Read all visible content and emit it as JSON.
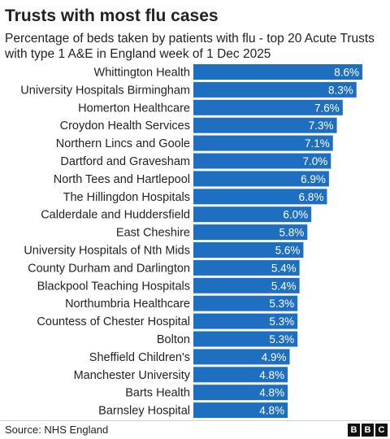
{
  "chart_data": {
    "type": "bar",
    "orientation": "horizontal",
    "title": "Trusts with most flu cases",
    "subtitle": "Percentage of beds taken by patients with flu - top 20 Acute Trusts with type 1 A&E in England week of 1 Dec 2025",
    "categories": [
      "Whittington Health",
      "University Hospitals Birmingham",
      "Homerton Healthcare",
      "Croydon Health Services",
      "Northern Lincs and Goole",
      "Dartford and Gravesham",
      "North Tees and Hartlepool",
      "The Hillingdon Hospitals",
      "Calderdale and Huddersfield",
      "East Cheshire",
      "University Hospitals of Nth Mids",
      "County Durham and Darlington",
      "Blackpool Teaching Hospitals",
      "Northumbria Healthcare",
      "Countess of Chester Hospital",
      "Bolton",
      "Sheffield Children's",
      "Manchester University",
      "Barts Health",
      "Barnsley Hospital"
    ],
    "values": [
      8.6,
      8.3,
      7.6,
      7.3,
      7.1,
      7.0,
      6.9,
      6.8,
      6.0,
      5.8,
      5.6,
      5.4,
      5.4,
      5.3,
      5.3,
      5.3,
      4.9,
      4.8,
      4.8,
      4.8
    ],
    "data_labels": [
      "8.6%",
      "8.3%",
      "7.6%",
      "7.3%",
      "7.1%",
      "7.0%",
      "6.9%",
      "6.8%",
      "6.0%",
      "5.8%",
      "5.6%",
      "5.4%",
      "5.4%",
      "5.3%",
      "5.3%",
      "5.3%",
      "4.9%",
      "4.8%",
      "4.8%",
      "4.8%"
    ],
    "xlim": [
      0,
      8.6
    ],
    "grid": false,
    "legend": "none",
    "bar_color": "#1f6fc0",
    "label_color": "#ffffff"
  },
  "footer": {
    "source": "Source: NHS England",
    "logo_letters": [
      "B",
      "B",
      "C"
    ]
  }
}
